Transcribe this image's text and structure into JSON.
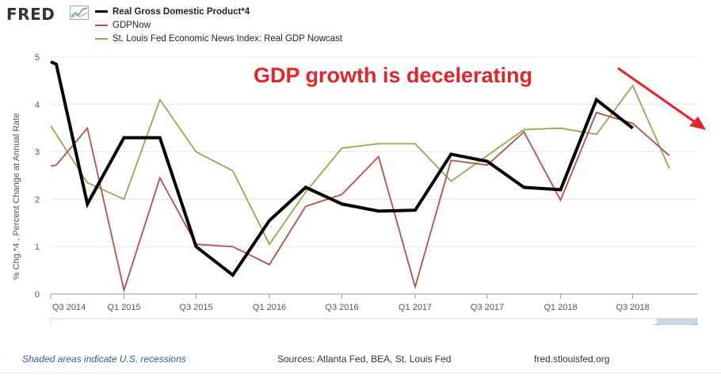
{
  "header": {
    "logo_text": "FRED"
  },
  "legend": [
    {
      "label": "Real Gross Domestic Product*4",
      "color": "#000000"
    },
    {
      "label": "GDPNow",
      "color": "#b0524a"
    },
    {
      "label": "St. Louis Fed Economic News Index: Real GDP Nowcast",
      "color": "#8eac4e"
    }
  ],
  "annotation": {
    "text": "GDP growth is decelerating",
    "color": "#e0262b"
  },
  "footer": {
    "recession_note": "Shaded areas indicate U.S. recessions",
    "sources": "Sources: Atlanta Fed, BEA, St. Louis Fed",
    "site": "fred.stlouisfed.org"
  },
  "chart_data": {
    "type": "line",
    "ylabel": "% Chg.*4 , Percent Change at Annual Rate",
    "xlabel": "",
    "ylim": [
      0,
      5
    ],
    "yticks": [
      0,
      1,
      2,
      3,
      4,
      5
    ],
    "grid": true,
    "x_ticks": [
      "Q3 2014",
      "Q1 2015",
      "Q3 2015",
      "Q1 2016",
      "Q3 2016",
      "Q1 2017",
      "Q3 2017",
      "Q1 2018",
      "Q3 2018"
    ],
    "series": [
      {
        "name": "Real Gross Domestic Product*4",
        "color": "#000000",
        "points": [
          [
            "2014-07-01",
            4.9
          ],
          [
            "2014-07-15",
            4.85
          ],
          [
            "2014-10-01",
            1.9
          ],
          [
            "2015-01-01",
            3.3
          ],
          [
            "2015-04-01",
            3.3
          ],
          [
            "2015-07-01",
            1.0
          ],
          [
            "2015-10-01",
            0.4
          ],
          [
            "2016-01-01",
            1.55
          ],
          [
            "2016-04-01",
            2.25
          ],
          [
            "2016-07-01",
            1.9
          ],
          [
            "2016-10-01",
            1.75
          ],
          [
            "2017-01-01",
            1.77
          ],
          [
            "2017-04-01",
            2.95
          ],
          [
            "2017-07-01",
            2.8
          ],
          [
            "2017-10-01",
            2.25
          ],
          [
            "2018-01-01",
            2.2
          ],
          [
            "2018-04-01",
            4.1
          ],
          [
            "2018-07-01",
            3.5
          ]
        ]
      },
      {
        "name": "GDPNow",
        "color": "#b0524a",
        "points": [
          [
            "2014-07-01",
            2.7
          ],
          [
            "2014-07-15",
            2.72
          ],
          [
            "2014-10-01",
            3.5
          ],
          [
            "2015-01-01",
            0.08
          ],
          [
            "2015-04-01",
            2.45
          ],
          [
            "2015-07-01",
            1.05
          ],
          [
            "2015-10-01",
            1.0
          ],
          [
            "2016-01-01",
            0.62
          ],
          [
            "2016-04-01",
            1.85
          ],
          [
            "2016-07-01",
            2.1
          ],
          [
            "2016-10-01",
            2.9
          ],
          [
            "2017-01-01",
            0.15
          ],
          [
            "2017-04-01",
            2.82
          ],
          [
            "2017-07-01",
            2.72
          ],
          [
            "2017-10-01",
            3.42
          ],
          [
            "2018-01-01",
            1.98
          ],
          [
            "2018-04-01",
            3.83
          ],
          [
            "2018-07-01",
            3.6
          ],
          [
            "2018-10-01",
            2.92
          ]
        ]
      },
      {
        "name": "St. Louis Fed Economic News Index: Real GDP Nowcast",
        "color": "#8eac4e",
        "points": [
          [
            "2014-07-01",
            3.55
          ],
          [
            "2014-10-01",
            2.35
          ],
          [
            "2015-01-01",
            2.0
          ],
          [
            "2015-04-01",
            4.1
          ],
          [
            "2015-07-01",
            3.0
          ],
          [
            "2015-10-01",
            2.6
          ],
          [
            "2016-01-01",
            1.05
          ],
          [
            "2016-04-01",
            2.15
          ],
          [
            "2016-07-01",
            3.08
          ],
          [
            "2016-10-01",
            3.17
          ],
          [
            "2017-01-01",
            3.17
          ],
          [
            "2017-04-01",
            2.38
          ],
          [
            "2017-07-01",
            2.92
          ],
          [
            "2017-10-01",
            3.47
          ],
          [
            "2018-01-01",
            3.5
          ],
          [
            "2018-04-01",
            3.37
          ],
          [
            "2018-07-01",
            4.4
          ],
          [
            "2018-10-01",
            2.65
          ]
        ]
      }
    ]
  }
}
